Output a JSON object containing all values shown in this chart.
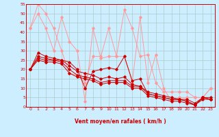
{
  "xlabel": "Vent moyen/en rafales ( km/h )",
  "xlim": [
    -0.5,
    23.5
  ],
  "ylim": [
    0,
    55
  ],
  "yticks": [
    0,
    5,
    10,
    15,
    20,
    25,
    30,
    35,
    40,
    45,
    50,
    55
  ],
  "xticks": [
    0,
    1,
    2,
    3,
    4,
    5,
    6,
    7,
    8,
    9,
    10,
    11,
    12,
    13,
    14,
    15,
    16,
    17,
    18,
    19,
    20,
    21,
    22,
    23
  ],
  "bg_color": "#cceeff",
  "grid_color": "#aacccc",
  "series_light": [
    [
      42,
      55,
      50,
      42,
      30,
      18,
      17,
      13,
      27,
      27,
      42,
      27,
      52,
      42,
      27,
      28,
      13,
      8,
      8,
      8,
      8,
      5,
      5,
      10
    ],
    [
      42,
      50,
      42,
      30,
      48,
      35,
      30,
      3,
      42,
      26,
      27,
      27,
      27,
      13,
      48,
      13,
      28,
      10,
      3,
      5,
      5,
      5,
      5,
      10
    ]
  ],
  "series_dark": [
    [
      20,
      29,
      27,
      26,
      25,
      24,
      20,
      10,
      19,
      20,
      21,
      20,
      27,
      14,
      15,
      7,
      6,
      5,
      4,
      4,
      3,
      1,
      5,
      5
    ],
    [
      20,
      27,
      26,
      25,
      25,
      22,
      19,
      18,
      17,
      15,
      16,
      15,
      16,
      12,
      11,
      8,
      7,
      6,
      5,
      4,
      4,
      2,
      5,
      4
    ],
    [
      20,
      26,
      25,
      25,
      24,
      20,
      17,
      16,
      15,
      13,
      14,
      14,
      14,
      11,
      11,
      7,
      6,
      5,
      4,
      4,
      3,
      1,
      5,
      4
    ],
    [
      20,
      25,
      24,
      24,
      23,
      18,
      16,
      15,
      14,
      12,
      13,
      13,
      13,
      10,
      10,
      6,
      5,
      4,
      3,
      3,
      2,
      1,
      4,
      4
    ]
  ],
  "dark_color": "#cc0000",
  "light_color": "#ff9999",
  "arrow_chars": [
    "↑",
    "↗",
    "↗",
    "↙",
    "↗",
    "↗",
    "←",
    "←",
    "↗",
    "↑",
    "↑",
    "↗",
    "↑",
    "↗",
    "←",
    "←",
    "↙",
    "→",
    "↗",
    "↗",
    "↗",
    "←",
    "↑",
    "←"
  ]
}
